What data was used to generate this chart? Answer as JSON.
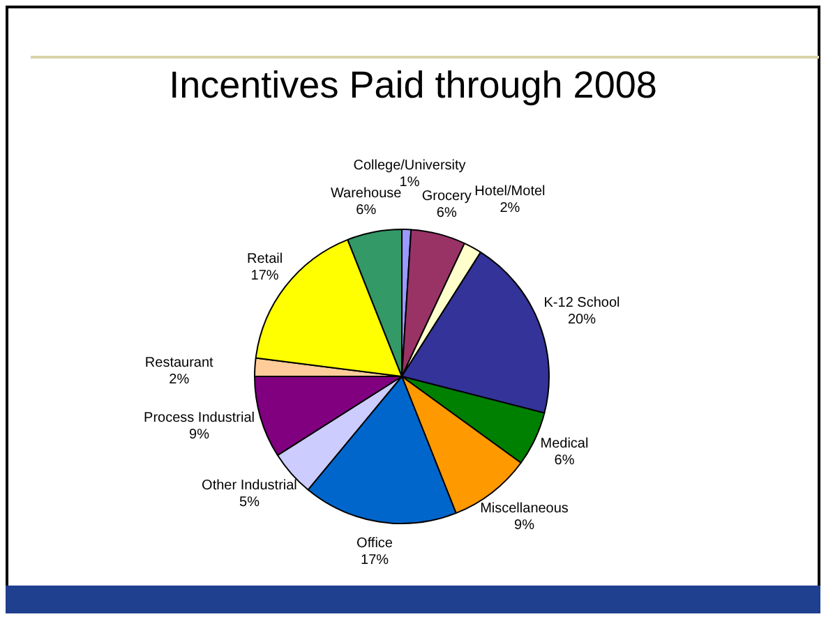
{
  "chart_data": {
    "type": "pie",
    "title": "Incentives Paid through 2008",
    "categories": [
      "College/University",
      "Grocery",
      "Hotel/Motel",
      "K-12 School",
      "Medical",
      "Miscellaneous",
      "Office",
      "Other Industrial",
      "Process Industrial",
      "Restaurant",
      "Retail",
      "Warehouse"
    ],
    "values": [
      1,
      6,
      2,
      20,
      6,
      9,
      17,
      5,
      9,
      2,
      17,
      6
    ],
    "value_labels": [
      "1%",
      "6%",
      "2%",
      "20%",
      "6%",
      "9%",
      "17%",
      "5%",
      "9%",
      "2%",
      "17%",
      "6%"
    ],
    "colors": [
      "#9999ff",
      "#993366",
      "#ffffcc",
      "#333399",
      "#008000",
      "#ff9900",
      "#0066cc",
      "#ccccff",
      "#800080",
      "#ffcc99",
      "#ffff00",
      "#339966"
    ],
    "legend": false
  }
}
